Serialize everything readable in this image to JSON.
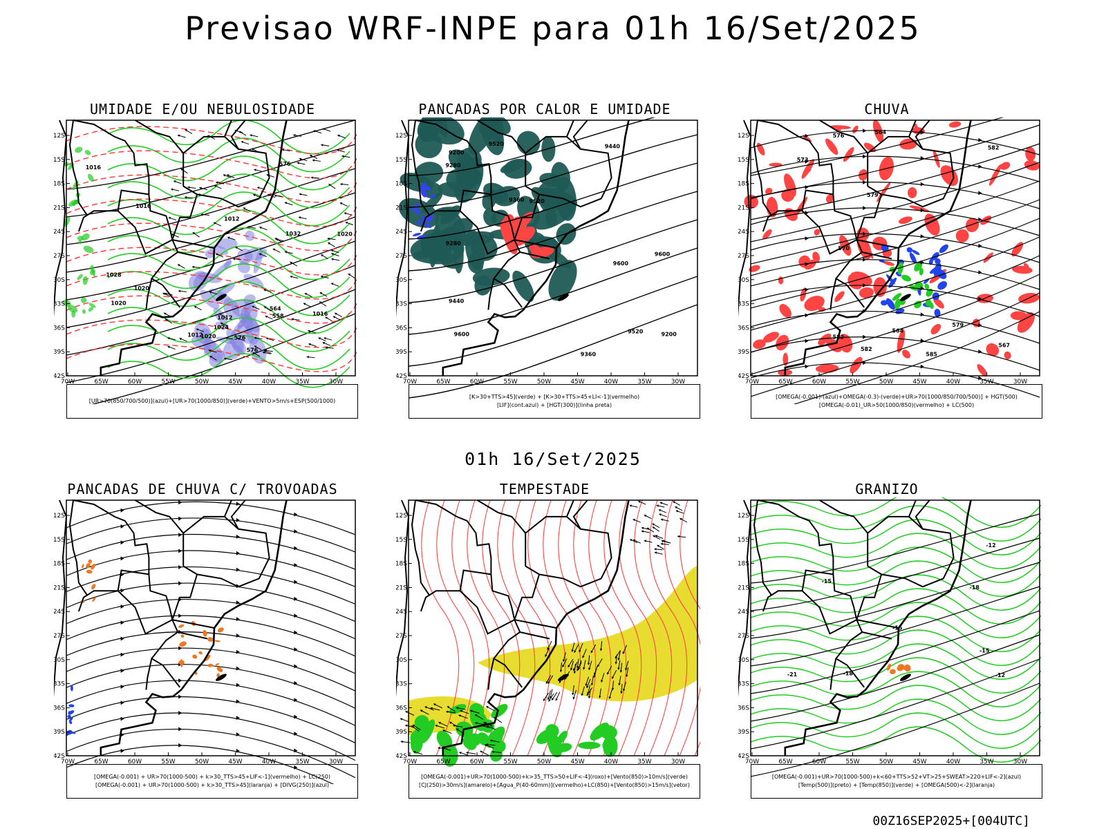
{
  "title": "Previsao WRF-INPE  para 01h 16/Set/2025",
  "subtitle": "01h 16/Set/2025",
  "footer": "00Z16SEP2025+[004UTC]",
  "axes": {
    "lat_ticks": [
      "12S",
      "15S",
      "18S",
      "21S",
      "24S",
      "27S",
      "30S",
      "33S",
      "36S",
      "39S",
      "42S"
    ],
    "lon_ticks": [
      "70W",
      "65W",
      "60W",
      "55W",
      "50W",
      "45W",
      "40W",
      "35W",
      "30W"
    ]
  },
  "panels": [
    {
      "title": "UMIDADE E/OU NEBULOSIDADE",
      "legend": [
        "[UR>70(850/700/500)](azul)+[UR>70(1000/850)](verde)+VENTO>5m/s+ESP(500/1000)"
      ],
      "colors": {
        "blue": "#8080e0",
        "green": "#22cc22",
        "red": "#ff3333",
        "contour": "#000000"
      },
      "labels": [
        "1012",
        "1012",
        "1012",
        "1016",
        "1020",
        "1020",
        "1024",
        "1028",
        "1032",
        "1016",
        "1020",
        "1016",
        "1020",
        "576",
        "576",
        "576",
        "564",
        "558"
      ]
    },
    {
      "title": "PANCADAS POR CALOR E UMIDADE",
      "legend": [
        "[K>30+TTS>45](verde) + [K>30+TTS>45+LI<-1](vermelho)",
        "[LIF](cont.azul) + [HGT(300)](linha preta)"
      ],
      "colors": {
        "teal": "#1f5a55",
        "red": "#ff4444",
        "blue": "#3344ee",
        "contour": "#000000"
      },
      "labels": [
        "9600",
        "9600",
        "9600",
        "9520",
        "9520",
        "9520",
        "9440",
        "9440",
        "9360",
        "9360",
        "9280",
        "9280",
        "9200",
        "9200"
      ]
    },
    {
      "title": "CHUVA",
      "legend": [
        "[OMEGA(-0.001)-(azul)+OMEGA(-0.3)-(verde)+UR>70(1000/850/700/500)] + HGT(500)",
        "[OMEGA(-0.01)_UR>50(1000/850)(vermelho) + LC(500)"
      ],
      "colors": {
        "red": "#ff4444",
        "blue": "#2244ee",
        "green": "#22cc22",
        "contour": "#000000"
      },
      "labels": [
        "582",
        "585",
        "582",
        "579",
        "576",
        "573",
        "570",
        "567",
        "564",
        "579",
        "582",
        "564"
      ]
    },
    {
      "title": "PANCADAS DE CHUVA C/ TROVOADAS",
      "legend": [
        "[OMEGA(-0.001) + UR>70(1000-500) + k>30_TTS>45+LIF<-1](vermelho) + LC(250)",
        "[OMEGA(-0.001) + UR>70(1000-500) + k>30_TTS>45](laranja) + [DIVG(250)](azul)"
      ],
      "colors": {
        "orange": "#ee7722",
        "blue": "#2244ee",
        "red": "#ff3333",
        "contour": "#000000"
      },
      "labels": []
    },
    {
      "title": "TEMPESTADE",
      "legend": [
        "[OMEGA(-0.001)+UR>70(1000-500)+k>35_TTS>50+LIF<-4](roxo)+[Vento(850)>10m/s](verde)",
        "[CJ(250)>30m/s](amarelo)+[Agua_P(40-60mm)](vermelho)+LC(850)+[Vento(850)>15m/s](vetor)"
      ],
      "colors": {
        "yellow": "#e8dc30",
        "green": "#22cc22",
        "red": "#ff4444",
        "contour": "#000000"
      },
      "labels": []
    },
    {
      "title": "GRANIZO",
      "legend": [
        "[OMEGA(-0.001)+UR>70(1000-500)+k<60+TTS>52+VT>25+SWEAT>220+LIF<-2](azul)",
        "[Temp(500)](preto) + [Temp(850)](verde) + [OMEGA(500)<-2](laranja)"
      ],
      "colors": {
        "green": "#22cc22",
        "orange": "#ee7722",
        "contour": "#000000"
      },
      "labels": [
        "-12",
        "-12",
        "-15",
        "-15",
        "-18",
        "-18",
        "-21",
        "-15"
      ]
    }
  ]
}
